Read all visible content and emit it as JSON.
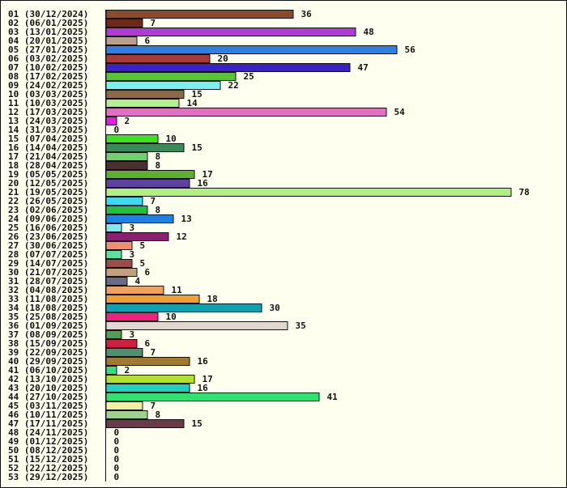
{
  "chart_data": {
    "type": "bar",
    "orientation": "horizontal",
    "title": "",
    "xlabel": "",
    "ylabel": "",
    "xlim": [
      0,
      78
    ],
    "grid": false,
    "legend": "none",
    "background": "#fffff0",
    "axis_color": "#111111",
    "categories": [
      "01 (30/12/2024)",
      "02 (06/01/2025)",
      "03 (13/01/2025)",
      "04 (20/01/2025)",
      "05 (27/01/2025)",
      "06 (03/02/2025)",
      "07 (10/02/2025)",
      "08 (17/02/2025)",
      "09 (24/02/2025)",
      "10 (03/03/2025)",
      "11 (10/03/2025)",
      "12 (17/03/2025)",
      "13 (24/03/2025)",
      "14 (31/03/2025)",
      "15 (07/04/2025)",
      "16 (14/04/2025)",
      "17 (21/04/2025)",
      "18 (28/04/2025)",
      "19 (05/05/2025)",
      "20 (12/05/2025)",
      "21 (19/05/2025)",
      "22 (26/05/2025)",
      "23 (02/06/2025)",
      "24 (09/06/2025)",
      "25 (16/06/2025)",
      "26 (23/06/2025)",
      "27 (30/06/2025)",
      "28 (07/07/2025)",
      "29 (14/07/2025)",
      "30 (21/07/2025)",
      "31 (28/07/2025)",
      "32 (04/08/2025)",
      "33 (11/08/2025)",
      "34 (18/08/2025)",
      "35 (25/08/2025)",
      "36 (01/09/2025)",
      "37 (08/09/2025)",
      "38 (15/09/2025)",
      "39 (22/09/2025)",
      "40 (29/09/2025)",
      "41 (06/10/2025)",
      "42 (13/10/2025)",
      "43 (20/10/2025)",
      "44 (27/10/2025)",
      "45 (03/11/2025)",
      "46 (10/11/2025)",
      "47 (17/11/2025)",
      "48 (24/11/2025)",
      "49 (01/12/2025)",
      "50 (08/12/2025)",
      "51 (15/12/2025)",
      "52 (22/12/2025)",
      "53 (29/12/2025)"
    ],
    "values": [
      36,
      7,
      48,
      6,
      56,
      20,
      47,
      25,
      22,
      15,
      14,
      54,
      2,
      0,
      10,
      15,
      8,
      8,
      17,
      16,
      78,
      7,
      8,
      13,
      3,
      12,
      5,
      3,
      5,
      6,
      4,
      11,
      18,
      30,
      10,
      35,
      3,
      6,
      7,
      16,
      2,
      17,
      16,
      41,
      7,
      8,
      15,
      0,
      0,
      0,
      0,
      0,
      0
    ],
    "colors": [
      "#8b4a2b",
      "#6b2a1a",
      "#b03ad6",
      "#b8a08a",
      "#2f7fe6",
      "#a83a3a",
      "#3a22c8",
      "#5ac23a",
      "#7af0f0",
      "#8b6a4a",
      "#b0f090",
      "#e070c0",
      "#e020e0",
      "#cccccc",
      "#40e020",
      "#3a8a5a",
      "#70d070",
      "#4a3030",
      "#60b030",
      "#6040a0",
      "#b0f080",
      "#40d8f0",
      "#20c040",
      "#2080e0",
      "#80e8f0",
      "#8a2070",
      "#f09070",
      "#60e0a0",
      "#a04a4a",
      "#c0a080",
      "#6a6a8a",
      "#f0a060",
      "#f0a030",
      "#10a0b0",
      "#f02080",
      "#e0d8d0",
      "#50a050",
      "#d02040",
      "#509070",
      "#a07a30",
      "#30e080",
      "#b0e030",
      "#20d0c0",
      "#30e070",
      "#f0f0a0",
      "#a0d090",
      "#6a3a4a",
      "#cccccc",
      "#cccccc",
      "#cccccc",
      "#cccccc",
      "#cccccc",
      "#cccccc"
    ]
  }
}
